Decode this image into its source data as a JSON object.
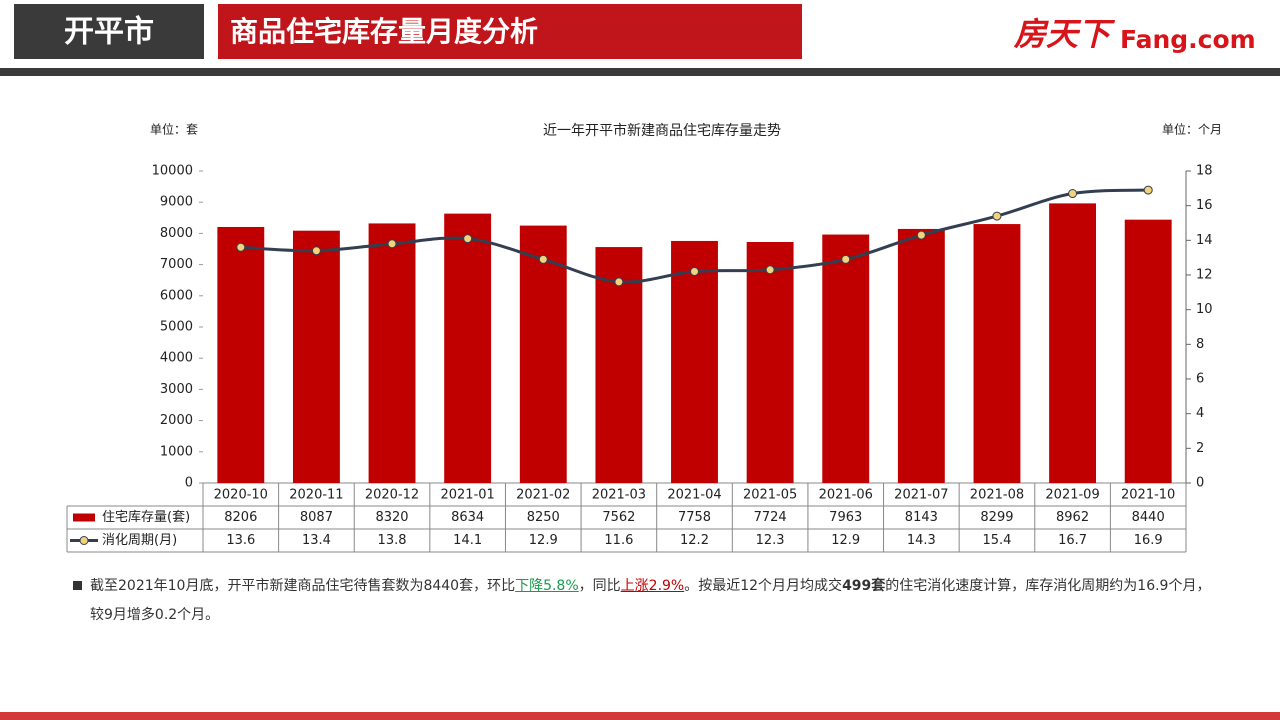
{
  "header": {
    "city": "开平市",
    "title": "商品住宅库存量月度分析",
    "logo": "房天下",
    "logo_en": "Fang.com"
  },
  "chart_data": {
    "type": "combo",
    "title": "近一年开平市新建商品住宅库存量走势",
    "y_unit": "单位：套",
    "y2_unit": "单位：个月",
    "categories": [
      "2020-10",
      "2020-11",
      "2020-12",
      "2021-01",
      "2021-02",
      "2021-03",
      "2021-04",
      "2021-05",
      "2021-06",
      "2021-07",
      "2021-08",
      "2021-09",
      "2021-10"
    ],
    "series": [
      {
        "name": "住宅库存量(套)",
        "type": "bar",
        "color": "#c00000",
        "values": [
          8206,
          8087,
          8320,
          8634,
          8250,
          7562,
          7758,
          7724,
          7963,
          8143,
          8299,
          8962,
          8440
        ]
      },
      {
        "name": "消化周期(月)",
        "type": "line",
        "axis": "y2",
        "color": "#333f50",
        "marker_color": "#f2d27a",
        "values": [
          13.6,
          13.4,
          13.8,
          14.1,
          12.9,
          11.6,
          12.2,
          12.3,
          12.9,
          14.3,
          15.4,
          16.7,
          16.9
        ]
      }
    ],
    "ylim": [
      0,
      10000
    ],
    "yticks": [
      0,
      1000,
      2000,
      3000,
      4000,
      5000,
      6000,
      7000,
      8000,
      9000,
      10000
    ],
    "y2lim": [
      0,
      18
    ],
    "y2ticks": [
      0,
      2,
      4,
      6,
      8,
      10,
      12,
      14,
      16,
      18
    ]
  },
  "note": {
    "parts": [
      "截至2021年10月底，开平市新建商品住宅待售套数为8440套，环比",
      "下降5.8%",
      "，同比",
      "上涨2.9%",
      "。按最近12个月月均成交",
      "499套",
      "的住宅消化速度计算，库存消化周期约为16.9个月，较9月增多0.2个月。"
    ]
  }
}
